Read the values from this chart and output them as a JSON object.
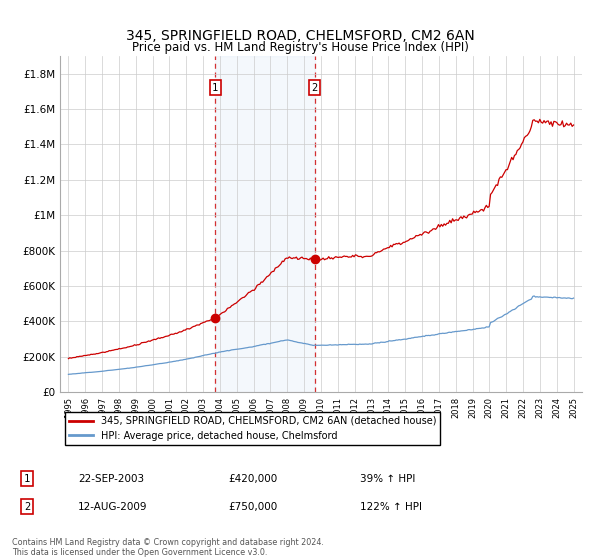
{
  "title": "345, SPRINGFIELD ROAD, CHELMSFORD, CM2 6AN",
  "subtitle": "Price paid vs. HM Land Registry's House Price Index (HPI)",
  "title_fontsize": 10,
  "subtitle_fontsize": 9,
  "ylim": [
    0,
    1900000
  ],
  "yticks": [
    0,
    200000,
    400000,
    600000,
    800000,
    1000000,
    1200000,
    1400000,
    1600000,
    1800000
  ],
  "ytick_labels": [
    "£0",
    "£200K",
    "£400K",
    "£600K",
    "£800K",
    "£1M",
    "£1.2M",
    "£1.4M",
    "£1.6M",
    "£1.8M"
  ],
  "xlim": [
    1994.5,
    2025.5
  ],
  "hpi_color": "#6699cc",
  "price_color": "#cc0000",
  "purchase1_x": 2003.72,
  "purchase1_y": 420000,
  "purchase2_x": 2009.62,
  "purchase2_y": 750000,
  "purchase1_label": "1",
  "purchase2_label": "2",
  "purchase1_date": "22-SEP-2003",
  "purchase1_price": "£420,000",
  "purchase1_hpi": "39% ↑ HPI",
  "purchase2_date": "12-AUG-2009",
  "purchase2_price": "£750,000",
  "purchase2_hpi": "122% ↑ HPI",
  "legend_line1": "345, SPRINGFIELD ROAD, CHELMSFORD, CM2 6AN (detached house)",
  "legend_line2": "HPI: Average price, detached house, Chelmsford",
  "footnote": "Contains HM Land Registry data © Crown copyright and database right 2024.\nThis data is licensed under the Open Government Licence v3.0.",
  "shaded_x1": 2003.72,
  "shaded_x2": 2009.62,
  "background_color": "#ffffff",
  "grid_color": "#cccccc"
}
